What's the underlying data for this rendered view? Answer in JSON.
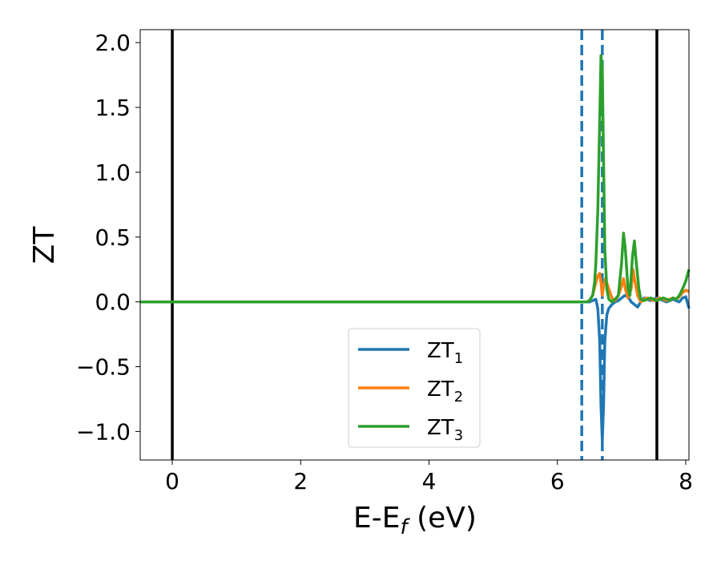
{
  "chart_data": {
    "type": "line",
    "xlabel_main": "E-E",
    "xlabel_sub": "f",
    "xlabel_unit": " (eV)",
    "ylabel": "ZT",
    "xlim": [
      -0.5,
      8.05
    ],
    "ylim": [
      -1.22,
      2.1
    ],
    "xticks": [
      0,
      2,
      4,
      6,
      8
    ],
    "yticks": [
      2.0,
      1.5,
      1.0,
      0.5,
      0.0,
      -0.5,
      -1.0
    ],
    "ytick_labels": [
      "2.0",
      "1.5",
      "1.0",
      "0.5",
      "0.0",
      "−0.5",
      "−1.0"
    ],
    "vlines_solid": [
      0.0,
      7.55
    ],
    "vlines_dashed": [
      6.38,
      6.7
    ],
    "legend_position": "lower-center",
    "legend": [
      {
        "base": "ZT",
        "sub": "1",
        "color": "#1f77b4"
      },
      {
        "base": "ZT",
        "sub": "2",
        "color": "#ff7f0e"
      },
      {
        "base": "ZT",
        "sub": "3",
        "color": "#2ca02c"
      }
    ],
    "series": [
      {
        "color": "#1f77b4",
        "x": [
          -0.5,
          6.38,
          6.45,
          6.5,
          6.55,
          6.6,
          6.63,
          6.66,
          6.68,
          6.7,
          6.72,
          6.74,
          6.77,
          6.8,
          6.85,
          6.9,
          6.95,
          7.0,
          7.05,
          7.1,
          7.15,
          7.2,
          7.25,
          7.3,
          7.35,
          7.4,
          7.45,
          7.5,
          7.55,
          7.6,
          7.65,
          7.7,
          7.75,
          7.8,
          7.85,
          7.9,
          7.95,
          8.0,
          8.05
        ],
        "y": [
          0,
          0,
          0.0,
          0.0,
          0.01,
          0.02,
          -0.05,
          -0.3,
          -0.8,
          -1.07,
          -0.8,
          -0.3,
          -0.1,
          -0.05,
          -0.02,
          0.0,
          0.01,
          0.03,
          0.05,
          0.04,
          0.0,
          -0.02,
          -0.04,
          0.0,
          0.03,
          0.02,
          0.01,
          0.02,
          0.03,
          0.02,
          0.01,
          0.0,
          0.01,
          0.02,
          0.01,
          0.0,
          0.03,
          0.04,
          -0.05
        ]
      },
      {
        "color": "#ff7f0e",
        "x": [
          -0.5,
          6.38,
          6.45,
          6.5,
          6.55,
          6.6,
          6.63,
          6.66,
          6.68,
          6.7,
          6.72,
          6.75,
          6.8,
          6.85,
          6.9,
          6.95,
          7.0,
          7.03,
          7.06,
          7.1,
          7.15,
          7.18,
          7.2,
          7.25,
          7.3,
          7.35,
          7.4,
          7.45,
          7.5,
          7.55,
          7.6,
          7.65,
          7.7,
          7.75,
          7.8,
          7.85,
          7.9,
          7.95,
          8.0,
          8.05
        ],
        "y": [
          0,
          0,
          0.0,
          0.01,
          0.05,
          0.15,
          0.2,
          0.22,
          0.15,
          0.05,
          0.12,
          0.18,
          0.1,
          0.03,
          0.01,
          0.05,
          0.12,
          0.18,
          0.1,
          0.03,
          0.1,
          0.25,
          0.18,
          0.05,
          0.0,
          0.02,
          0.03,
          0.02,
          0.01,
          0.02,
          0.03,
          0.02,
          0.01,
          0.02,
          0.03,
          0.02,
          0.04,
          0.07,
          0.09,
          0.08
        ]
      },
      {
        "color": "#2ca02c",
        "x": [
          -0.5,
          6.38,
          6.45,
          6.5,
          6.55,
          6.58,
          6.6,
          6.63,
          6.66,
          6.68,
          6.7,
          6.72,
          6.74,
          6.77,
          6.8,
          6.85,
          6.9,
          6.95,
          7.0,
          7.03,
          7.06,
          7.1,
          7.13,
          7.17,
          7.2,
          7.23,
          7.27,
          7.3,
          7.35,
          7.4,
          7.45,
          7.5,
          7.55,
          7.6,
          7.65,
          7.7,
          7.75,
          7.8,
          7.85,
          7.9,
          7.95,
          8.0,
          8.05
        ],
        "y": [
          0,
          0,
          0.0,
          0.01,
          0.05,
          0.15,
          0.3,
          0.7,
          1.4,
          1.9,
          1.8,
          1.1,
          0.4,
          0.1,
          0.02,
          0.0,
          0.02,
          0.05,
          0.3,
          0.53,
          0.4,
          0.1,
          0.05,
          0.35,
          0.47,
          0.3,
          0.1,
          0.02,
          0.01,
          0.02,
          0.03,
          0.02,
          0.01,
          0.02,
          0.03,
          0.02,
          0.01,
          0.03,
          0.02,
          0.05,
          0.1,
          0.16,
          0.25
        ]
      }
    ]
  }
}
